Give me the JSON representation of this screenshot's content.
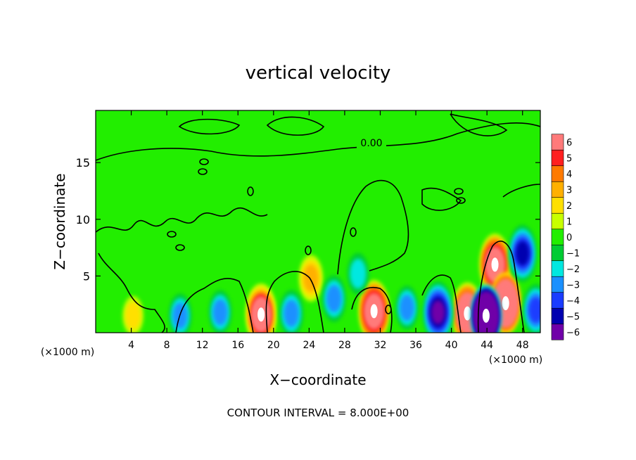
{
  "chart_data": {
    "type": "heatmap",
    "title": "vertical velocity",
    "xlabel": "X−coordinate",
    "ylabel": "Z−coordinate",
    "x_unit_label": "(×1000 m)",
    "footer": "CONTOUR INTERVAL = 8.000E+00",
    "xlim": [
      0,
      50
    ],
    "ylim": [
      0,
      19.6
    ],
    "x_ticks": [
      4,
      8,
      12,
      16,
      20,
      24,
      28,
      32,
      36,
      40,
      44,
      48
    ],
    "y_ticks": [
      5,
      10,
      15
    ],
    "contour_label": "0.00",
    "colorbar": {
      "levels": [
        6,
        5,
        4,
        3,
        2,
        1,
        0,
        -1,
        -2,
        -3,
        -4,
        -5,
        -6
      ],
      "colors": [
        "#ff7a7a",
        "#ff2020",
        "#ff7a00",
        "#ffb000",
        "#ffe000",
        "#c8ff00",
        "#22ee00",
        "#00cc33",
        "#00e8e0",
        "#1a90ff",
        "#1a3cff",
        "#0000b0",
        "#7000a8"
      ]
    },
    "features": [
      {
        "x": 18.6,
        "z": 1.6,
        "w": 8
      },
      {
        "x": 31.3,
        "z": 1.9,
        "w": 9
      },
      {
        "x": 41.8,
        "z": 1.7,
        "w": 10
      },
      {
        "x": 44.9,
        "z": 6.0,
        "w": 9
      },
      {
        "x": 46.1,
        "z": 2.6,
        "w": 14
      },
      {
        "x": 43.9,
        "z": 1.5,
        "w": -16
      },
      {
        "x": 38.5,
        "z": 1.8,
        "w": -6
      },
      {
        "x": 48.0,
        "z": 7.0,
        "w": -5
      },
      {
        "x": 49.5,
        "z": 2.0,
        "w": -4
      },
      {
        "x": 24.2,
        "z": 4.8,
        "w": 3
      },
      {
        "x": 22.0,
        "z": 1.7,
        "w": -3
      },
      {
        "x": 26.8,
        "z": 3.0,
        "w": -3
      },
      {
        "x": 9.5,
        "z": 1.5,
        "w": -2.5
      },
      {
        "x": 14.0,
        "z": 1.8,
        "w": -2.5
      },
      {
        "x": 4.2,
        "z": 1.5,
        "w": 1.5
      },
      {
        "x": 35.0,
        "z": 2.2,
        "w": -2.5
      },
      {
        "x": 29.5,
        "z": 5.2,
        "w": -2
      }
    ]
  }
}
